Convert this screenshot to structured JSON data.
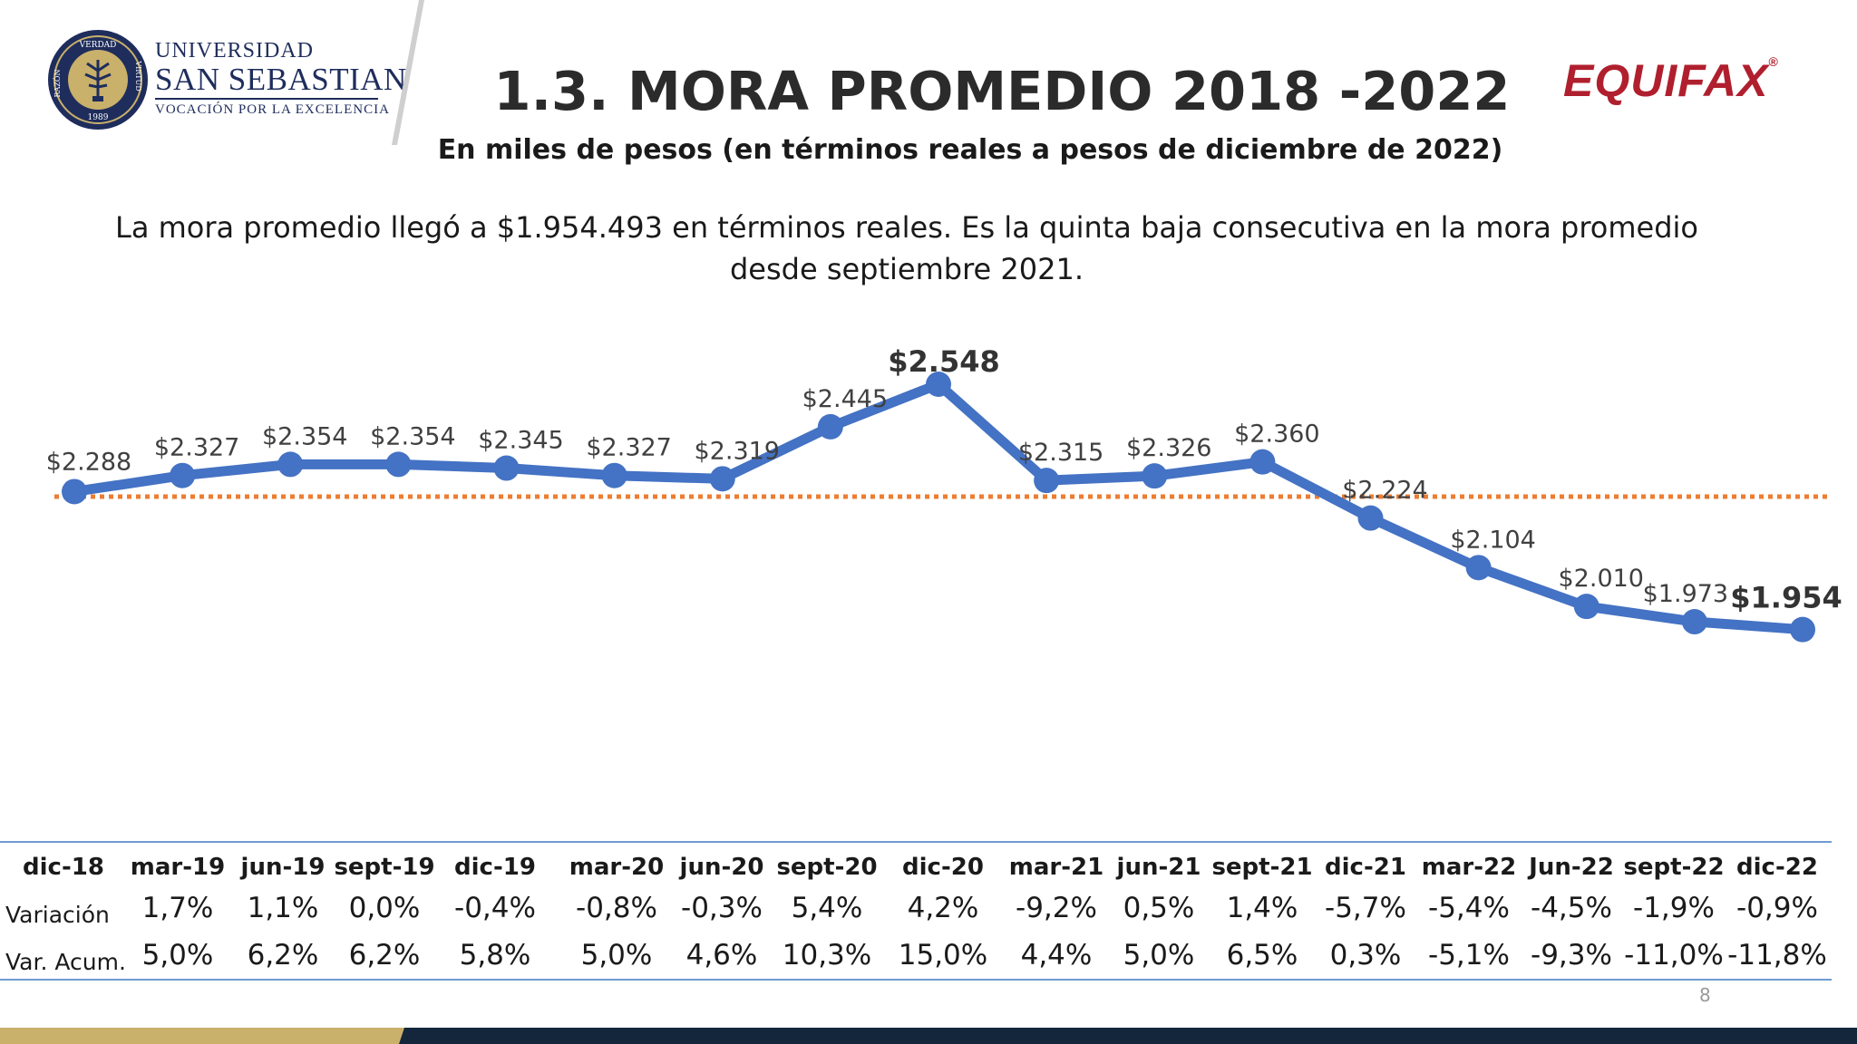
{
  "header": {
    "university": {
      "line1": "UNIVERSIDAD",
      "line2": "SAN SEBASTIAN",
      "line3": "VOCACIÓN POR LA EXCELENCIA"
    },
    "seal_words": {
      "top": "VERDAD",
      "left": "RAZÓN",
      "right": "VIRTUD",
      "year": "1989"
    },
    "title": "1.3. MORA PROMEDIO 2018 -2022",
    "subtitle": "En miles de pesos (en términos reales a pesos de diciembre de 2022)",
    "brand": "EQUIFAX",
    "brand_mark": "®"
  },
  "lead_text": "La mora promedio llegó a $1.954.493 en términos reales. Es la quinta baja consecutiva en la mora promedio desde septiembre 2021.",
  "chart_data": {
    "type": "line",
    "categories": [
      "dic-18",
      "mar-19",
      "jun-19",
      "sept-19",
      "dic-19",
      "mar-20",
      "jun-20",
      "sept-20",
      "dic-20",
      "mar-21",
      "jun-21",
      "sept-21",
      "dic-21",
      "mar-22",
      "Jun-22",
      "sept-22",
      "dic-22"
    ],
    "series": [
      {
        "values": [
          2288,
          2327,
          2354,
          2354,
          2345,
          2327,
          2319,
          2445,
          2548,
          2315,
          2326,
          2360,
          2224,
          2104,
          2010,
          1973,
          1954
        ],
        "color": "#4472c4"
      }
    ],
    "data_labels": [
      "$2.288",
      "$2.327",
      "$2.354",
      "$2.354",
      "$2.345",
      "$2.327",
      "$2.319",
      "$2.445",
      "$2.548",
      "$2.315",
      "$2.326",
      "$2.360",
      "$2.224",
      "$2.104",
      "$2.010",
      "$1.973",
      "$1.954"
    ],
    "highlighted_labels": [
      8,
      16
    ],
    "reference_line": {
      "value": 2276,
      "color": "#ed7d31",
      "style": "dotted"
    },
    "ylim": [
      1600,
      2600
    ],
    "grid": false
  },
  "table": {
    "headers": [
      "dic-18",
      "mar-19",
      "jun-19",
      "sept-19",
      "dic-19",
      "mar-20",
      "jun-20",
      "sept-20",
      "dic-20",
      "mar-21",
      "jun-21",
      "sept-21",
      "dic-21",
      "mar-22",
      "Jun-22",
      "sept-22",
      "dic-22"
    ],
    "rows": [
      {
        "label": "Variación",
        "values": [
          "",
          "1,7%",
          "1,1%",
          "0,0%",
          "-0,4%",
          "-0,8%",
          "-0,3%",
          "5,4%",
          "4,2%",
          "-9,2%",
          "0,5%",
          "1,4%",
          "-5,7%",
          "-5,4%",
          "-4,5%",
          "-1,9%",
          "-0,9%"
        ]
      },
      {
        "label": "Var. Acum.",
        "values": [
          "",
          "5,0%",
          "6,2%",
          "6,2%",
          "5,8%",
          "5,0%",
          "4,6%",
          "10,3%",
          "15,0%",
          "4,4%",
          "5,0%",
          "6,5%",
          "0,3%",
          "-5,1%",
          "-9,3%",
          "-11,0%",
          "-11,8%"
        ]
      }
    ]
  },
  "page_number": "8",
  "colors": {
    "navy": "#1e2d5c",
    "gold": "#c9b06b",
    "footer_dark": "#13263c",
    "brand_red": "#b01f2e"
  }
}
